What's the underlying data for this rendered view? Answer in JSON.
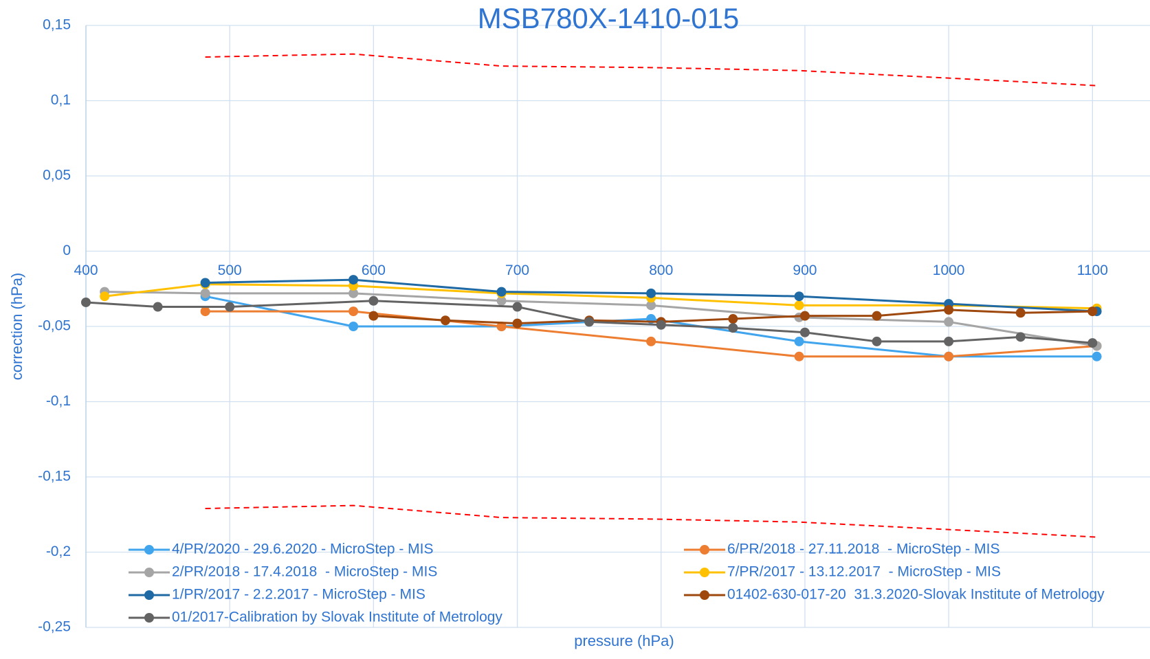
{
  "chart_data": {
    "type": "line",
    "title": "MSB780X-1410-015",
    "xlabel": "pressure (hPa)",
    "ylabel": "correction (hPa)",
    "xlim": [
      400,
      1140
    ],
    "ylim": [
      -0.25,
      0.15
    ],
    "xticks": [
      400,
      500,
      600,
      700,
      800,
      900,
      1000,
      1100
    ],
    "yticks": [
      {
        "value": 0.15,
        "label": "0,15"
      },
      {
        "value": 0.1,
        "label": "0,1"
      },
      {
        "value": 0.05,
        "label": "0,05"
      },
      0,
      {
        "value": -0.05,
        "label": "-0,05"
      },
      {
        "value": -0.1,
        "label": "-0,1"
      },
      {
        "value": -0.15,
        "label": "-0,15"
      },
      {
        "value": -0.2,
        "label": "-0,2"
      },
      {
        "value": -0.25,
        "label": "-0,25"
      }
    ],
    "grid": true,
    "legend": "bottom",
    "series": [
      {
        "name": "4/PR/2020 - 29.6.2020 - MicroStep - MIS",
        "color": "#41a5ee",
        "x": [
          483,
          586,
          689,
          793,
          896,
          1000,
          1103
        ],
        "values": [
          -0.03,
          -0.05,
          -0.05,
          -0.045,
          -0.06,
          -0.07,
          -0.07
        ]
      },
      {
        "name": "6/PR/2018 - 27.11.2018  - MicroStep - MIS",
        "color": "#ed7d31",
        "x": [
          483,
          586,
          689,
          793,
          896,
          1000,
          1103
        ],
        "values": [
          -0.04,
          -0.04,
          -0.05,
          -0.06,
          -0.07,
          -0.07,
          -0.063
        ]
      },
      {
        "name": "2/PR/2018 - 17.4.2018  - MicroStep - MIS",
        "color": "#a5a5a5",
        "x": [
          413,
          483,
          586,
          689,
          793,
          896,
          1000,
          1103
        ],
        "values": [
          -0.027,
          -0.028,
          -0.028,
          -0.033,
          -0.036,
          -0.044,
          -0.047,
          -0.063
        ]
      },
      {
        "name": "7/PR/2017 - 13.12.2017  - MicroStep - MIS",
        "color": "#ffc000",
        "x": [
          413,
          483,
          586,
          689,
          793,
          896,
          1000,
          1103
        ],
        "values": [
          -0.03,
          -0.022,
          -0.023,
          -0.028,
          -0.031,
          -0.036,
          -0.036,
          -0.038
        ]
      },
      {
        "name": "1/PR/2017 - 2.2.2017 - MicroStep - MIS",
        "color": "#1f6aa5",
        "x": [
          483,
          586,
          689,
          793,
          896,
          1000,
          1103
        ],
        "values": [
          -0.021,
          -0.019,
          -0.027,
          -0.028,
          -0.03,
          -0.035,
          -0.04
        ]
      },
      {
        "name": "01402-630-017-20  31.3.2020-Slovak Institute of Metrology",
        "color": "#9e480e",
        "x": [
          600,
          650,
          700,
          750,
          800,
          850,
          900,
          950,
          1000,
          1050,
          1100
        ],
        "values": [
          -0.043,
          -0.046,
          -0.048,
          -0.046,
          -0.047,
          -0.045,
          -0.043,
          -0.043,
          -0.039,
          -0.041,
          -0.04
        ]
      },
      {
        "name": "01/2017-Calibration by Slovak Institute of Metrology",
        "color": "#636363",
        "x": [
          400,
          450,
          500,
          600,
          700,
          750,
          800,
          850,
          900,
          950,
          1000,
          1050,
          1100
        ],
        "values": [
          -0.034,
          -0.037,
          -0.037,
          -0.033,
          -0.037,
          -0.047,
          -0.049,
          -0.051,
          -0.054,
          -0.06,
          -0.06,
          -0.057,
          -0.061
        ]
      },
      {
        "color": "#ff0000",
        "dashed": true,
        "x": [
          483,
          586,
          689,
          793,
          896,
          1000,
          1103
        ],
        "values": [
          0.129,
          0.131,
          0.123,
          0.122,
          0.12,
          0.115,
          0.11
        ]
      },
      {
        "color": "#ff0000",
        "dashed": true,
        "x": [
          483,
          586,
          689,
          793,
          896,
          1000,
          1103
        ],
        "values": [
          -0.171,
          -0.169,
          -0.177,
          -0.178,
          -0.18,
          -0.185,
          -0.19
        ]
      }
    ]
  }
}
